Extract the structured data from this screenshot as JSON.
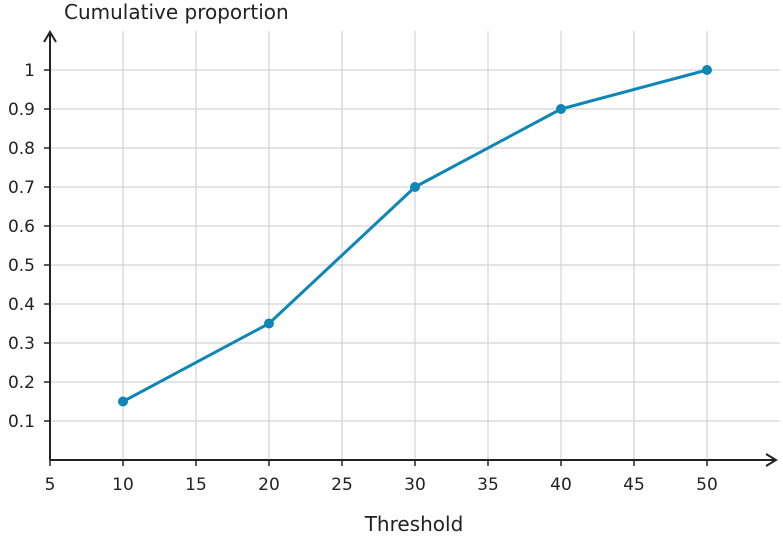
{
  "chart_data": {
    "type": "line",
    "title": "",
    "xlabel": "Threshold",
    "ylabel": "Cumulative proportion",
    "xlim": [
      5,
      55
    ],
    "ylim": [
      0,
      1.1
    ],
    "x_ticks": [
      5,
      10,
      15,
      20,
      25,
      30,
      35,
      40,
      45,
      50
    ],
    "y_ticks": [
      0.1,
      0.2,
      0.3,
      0.4,
      0.5,
      0.6,
      0.7,
      0.8,
      0.9,
      1
    ],
    "grid": true,
    "legend": "none",
    "series": [
      {
        "color": "#0e86b8",
        "x": [
          10,
          20,
          30,
          40,
          50
        ],
        "y": [
          0.15,
          0.35,
          0.7,
          0.9,
          1.0
        ]
      }
    ]
  }
}
